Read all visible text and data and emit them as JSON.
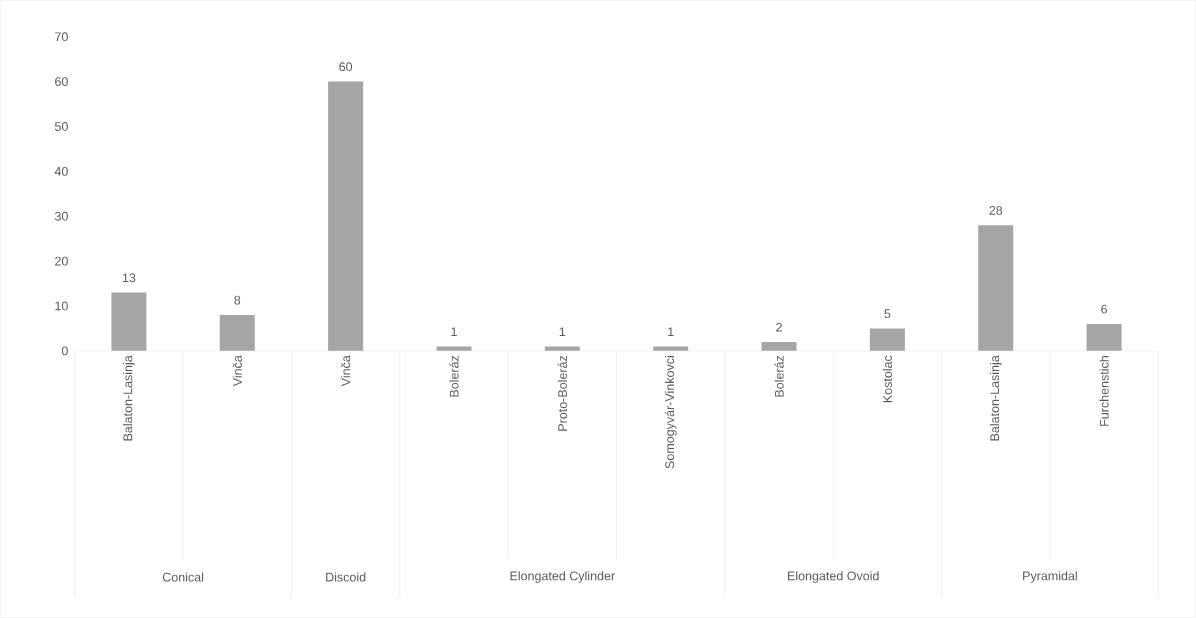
{
  "chart_data": {
    "type": "bar",
    "categories": [
      "Balaton-Lasinja",
      "Vinča",
      "Vinča",
      "Boleráz",
      "Proto-Boleráz",
      "Somogyvár-Vinkovci",
      "Boleráz",
      "Kostolac",
      "Balaton-Lasinja",
      "Furchenstich"
    ],
    "values": [
      13,
      8,
      60,
      1,
      1,
      1,
      2,
      5,
      28,
      6
    ],
    "color": "#a5a5a5",
    "ylim": [
      0,
      70
    ],
    "yticks": [
      0,
      10,
      20,
      30,
      40,
      50,
      60,
      70
    ],
    "data_labels": true,
    "annotations": [
      "Conical",
      "Discoid",
      "Elongated Cylinder",
      "Elongated Ovoid",
      "Pyramidal"
    ]
  }
}
